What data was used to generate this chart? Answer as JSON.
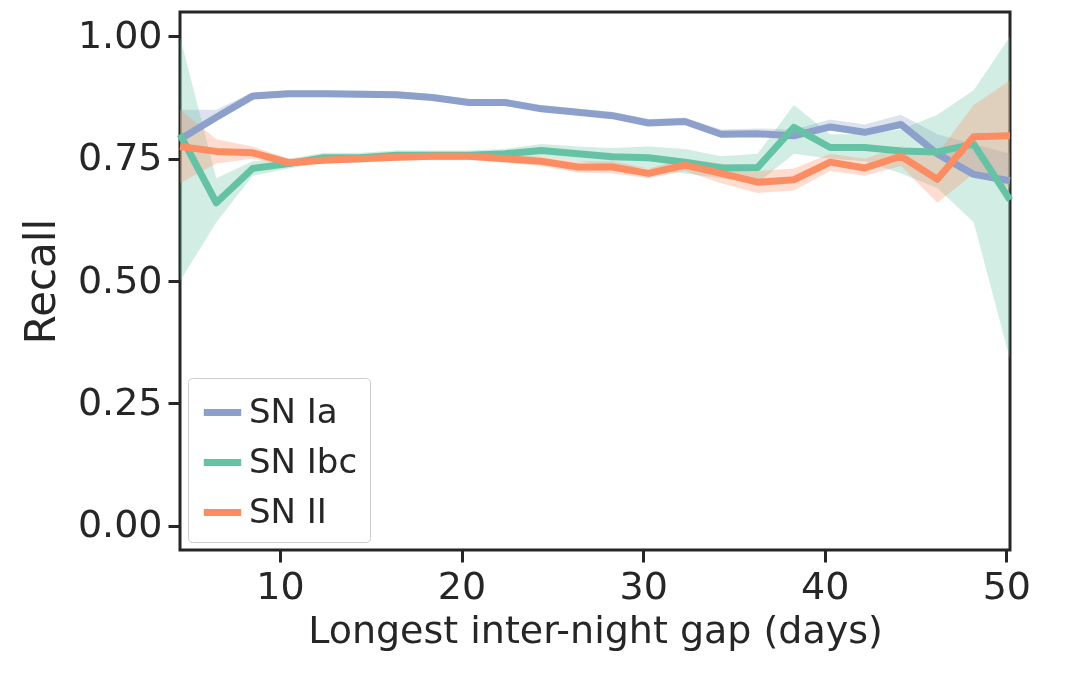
{
  "chart_data": {
    "type": "line",
    "xlabel": "Longest inter-night gap (days)",
    "ylabel": "Recall",
    "x": [
      4.5,
      6.5,
      8.5,
      10.5,
      12.4,
      14.4,
      16.4,
      18.4,
      20.4,
      22.4,
      24.4,
      26.4,
      28.3,
      30.3,
      32.3,
      34.3,
      36.3,
      38.3,
      40.3,
      42.2,
      44.2,
      46.2,
      48.2,
      50.2
    ],
    "series": [
      {
        "name": "SN Ia",
        "color": "#8da0cb",
        "values": [
          0.79,
          0.835,
          0.878,
          0.883,
          0.883,
          0.882,
          0.881,
          0.875,
          0.865,
          0.865,
          0.852,
          0.845,
          0.838,
          0.823,
          0.826,
          0.8,
          0.801,
          0.797,
          0.815,
          0.804,
          0.82,
          0.76,
          0.718,
          0.705
        ],
        "lower": [
          0.79,
          0.835,
          0.878,
          0.883,
          0.883,
          0.882,
          0.881,
          0.875,
          0.865,
          0.865,
          0.852,
          0.845,
          0.838,
          0.823,
          0.826,
          0.8,
          0.801,
          0.797,
          0.815,
          0.804,
          0.82,
          0.76,
          0.718,
          0.705
        ],
        "upper": [
          0.85,
          0.85,
          0.886,
          0.89,
          0.89,
          0.889,
          0.888,
          0.882,
          0.872,
          0.872,
          0.86,
          0.852,
          0.846,
          0.831,
          0.834,
          0.81,
          0.812,
          0.81,
          0.83,
          0.82,
          0.84,
          0.8,
          0.78,
          0.76
        ]
      },
      {
        "name": "SN Ibc",
        "color": "#66c2a5",
        "values": [
          0.8,
          0.66,
          0.73,
          0.74,
          0.752,
          0.752,
          0.757,
          0.757,
          0.757,
          0.76,
          0.767,
          0.76,
          0.754,
          0.752,
          0.743,
          0.731,
          0.732,
          0.814,
          0.773,
          0.773,
          0.766,
          0.764,
          0.78,
          0.666
        ],
        "lower": [
          0.5,
          0.62,
          0.715,
          0.73,
          0.742,
          0.742,
          0.747,
          0.747,
          0.747,
          0.75,
          0.755,
          0.745,
          0.735,
          0.73,
          0.72,
          0.71,
          0.7,
          0.76,
          0.75,
          0.745,
          0.72,
          0.69,
          0.62,
          0.34
        ],
        "upper": [
          1.0,
          0.71,
          0.745,
          0.75,
          0.762,
          0.762,
          0.767,
          0.767,
          0.767,
          0.77,
          0.78,
          0.775,
          0.772,
          0.775,
          0.77,
          0.755,
          0.76,
          0.86,
          0.8,
          0.8,
          0.81,
          0.84,
          0.89,
          1.0
        ]
      },
      {
        "name": "SN II",
        "color": "#fc8d62",
        "values": [
          0.775,
          0.765,
          0.762,
          0.742,
          0.747,
          0.75,
          0.753,
          0.755,
          0.755,
          0.75,
          0.745,
          0.733,
          0.733,
          0.72,
          0.737,
          0.72,
          0.702,
          0.707,
          0.743,
          0.731,
          0.755,
          0.708,
          0.795,
          0.797
        ],
        "lower": [
          0.7,
          0.74,
          0.75,
          0.735,
          0.74,
          0.743,
          0.746,
          0.748,
          0.748,
          0.742,
          0.735,
          0.722,
          0.72,
          0.71,
          0.725,
          0.7,
          0.68,
          0.685,
          0.725,
          0.715,
          0.735,
          0.66,
          0.72,
          0.69
        ],
        "upper": [
          0.85,
          0.79,
          0.775,
          0.75,
          0.755,
          0.757,
          0.76,
          0.762,
          0.762,
          0.758,
          0.755,
          0.745,
          0.745,
          0.73,
          0.75,
          0.74,
          0.725,
          0.73,
          0.76,
          0.75,
          0.775,
          0.76,
          0.86,
          0.91
        ]
      }
    ],
    "xlim": [
      4.5,
      50.2
    ],
    "xticks": [
      10,
      20,
      30,
      40,
      50
    ],
    "ylim": [
      -0.05,
      1.05
    ],
    "yticks": [
      {
        "value": 0,
        "label": "0.00"
      },
      {
        "value": 0.25,
        "label": "0.25"
      },
      {
        "value": 0.5,
        "label": "0.50"
      },
      {
        "value": 0.75,
        "label": "0.75"
      },
      {
        "value": 1,
        "label": "1.00"
      }
    ],
    "grid": false,
    "legend": "bottom left",
    "marker": "none",
    "line_style": "solid"
  }
}
